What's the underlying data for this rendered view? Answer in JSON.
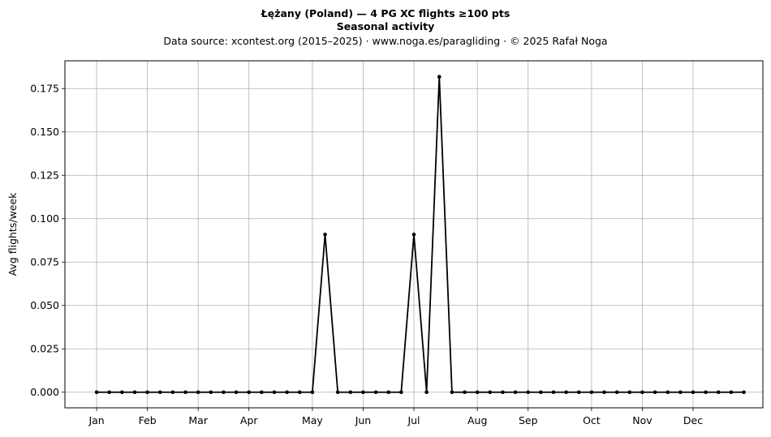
{
  "chart_data": {
    "type": "line",
    "title": "Łężany (Poland)  —  4 PG XC flights ≥100 pts",
    "subtitle": "Seasonal activity",
    "source_line": "Data source: xcontest.org (2015–2025)  ·  www.noga.es/paragliding  ·  © 2025 Rafał Noga",
    "xlabel": "",
    "ylabel": "Avg flights/week",
    "grid": true,
    "x_unit": "week of year",
    "xlim": [
      -1.5,
      53.5
    ],
    "ylim": [
      -0.009,
      0.191
    ],
    "y_ticks": [
      "0.000",
      "0.025",
      "0.050",
      "0.075",
      "0.100",
      "0.125",
      "0.150",
      "0.175"
    ],
    "x_ticks": [
      {
        "label": "Jan",
        "week": 1
      },
      {
        "label": "Feb",
        "week": 5
      },
      {
        "label": "Mar",
        "week": 9
      },
      {
        "label": "Apr",
        "week": 13
      },
      {
        "label": "May",
        "week": 18
      },
      {
        "label": "Jun",
        "week": 22
      },
      {
        "label": "Jul",
        "week": 26
      },
      {
        "label": "Aug",
        "week": 31
      },
      {
        "label": "Sep",
        "week": 35
      },
      {
        "label": "Oct",
        "week": 40
      },
      {
        "label": "Nov",
        "week": 44
      },
      {
        "label": "Dec",
        "week": 48
      }
    ],
    "series": [
      {
        "x": [
          1,
          2,
          3,
          4,
          5,
          6,
          7,
          8,
          9,
          10,
          11,
          12,
          13,
          14,
          15,
          16,
          17,
          18,
          19,
          20,
          21,
          22,
          23,
          24,
          25,
          26,
          27,
          28,
          29,
          30,
          31,
          32,
          33,
          34,
          35,
          36,
          37,
          38,
          39,
          40,
          41,
          42,
          43,
          44,
          45,
          46,
          47,
          48,
          49,
          50,
          51,
          52
        ],
        "values": [
          0,
          0,
          0,
          0,
          0,
          0,
          0,
          0,
          0,
          0,
          0,
          0,
          0,
          0,
          0,
          0,
          0,
          0,
          0.0909,
          0,
          0,
          0,
          0,
          0,
          0,
          0.0909,
          0,
          0.1818,
          0,
          0,
          0,
          0,
          0,
          0,
          0,
          0,
          0,
          0,
          0,
          0,
          0,
          0,
          0,
          0,
          0,
          0,
          0,
          0,
          0,
          0,
          0,
          0
        ],
        "color": "#000000"
      }
    ]
  }
}
